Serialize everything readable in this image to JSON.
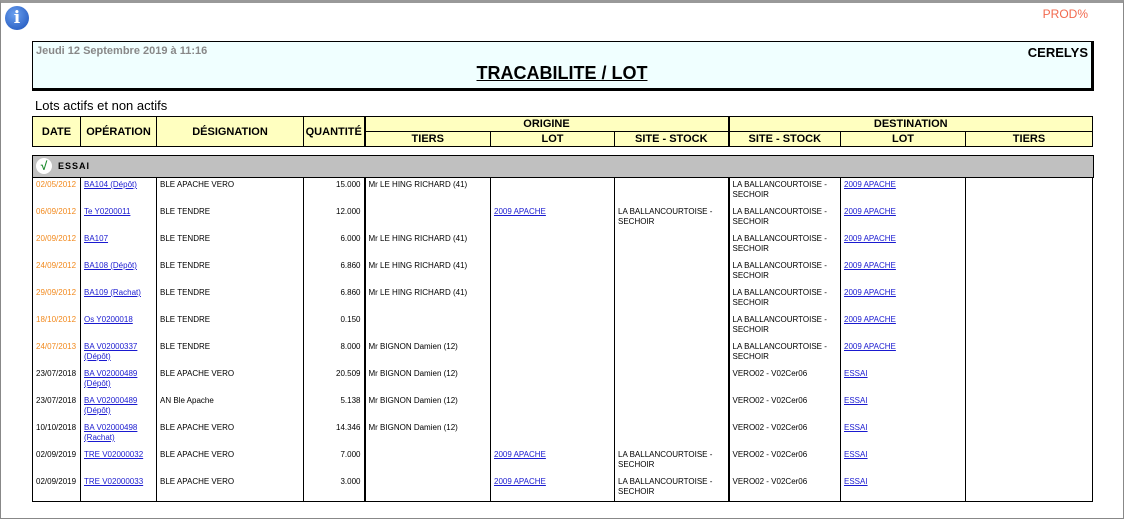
{
  "env": "PROD%",
  "header": {
    "datetime": "Jeudi 12 Septembre 2019 à 11:16",
    "company": "CERELYS",
    "title": "TRACABILITE / LOT"
  },
  "subtitle": "Lots actifs et non actifs",
  "columns": {
    "date": "DATE",
    "operation": "OPÉRATION",
    "designation": "DÉSIGNATION",
    "quantite": "QUANTITÉ",
    "origine": "ORIGINE",
    "destination": "DESTINATION",
    "tiers": "TIERS",
    "lot": "LOT",
    "site_stock": "SITE - STOCK"
  },
  "group": {
    "name": "ESSAI",
    "icon": "check-icon"
  },
  "colors": {
    "old_date": "#f28a1e",
    "link": "#1a1ad0",
    "header_bg": "#ffffc0"
  },
  "rows": [
    {
      "date": "02/05/2012",
      "old": true,
      "op": "BA104 (Dépôt)",
      "des": "BLE APACHE VERO",
      "qty": "15.000",
      "o_tiers": "Mr LE HING RICHARD (41)",
      "o_lot": "",
      "o_site": "",
      "d_site": "LA BALLANCOURTOISE - SECHOIR",
      "d_lot": "2009 APACHE",
      "d_tiers": ""
    },
    {
      "date": "06/09/2012",
      "old": true,
      "op": "Te  Y0200011",
      "des": "BLE TENDRE",
      "qty": "12.000",
      "o_tiers": "",
      "o_lot": "2009 APACHE",
      "o_site": "LA BALLANCOURTOISE - SECHOIR",
      "d_site": "LA BALLANCOURTOISE - SECHOIR",
      "d_lot": "2009 APACHE",
      "d_tiers": ""
    },
    {
      "date": "20/09/2012",
      "old": true,
      "op": "BA107",
      "des": "BLE TENDRE",
      "qty": "6.000",
      "o_tiers": "Mr LE HING RICHARD (41)",
      "o_lot": "",
      "o_site": "",
      "d_site": "LA BALLANCOURTOISE - SECHOIR",
      "d_lot": "2009 APACHE",
      "d_tiers": ""
    },
    {
      "date": "24/09/2012",
      "old": true,
      "op": "BA108 (Dépôt)",
      "des": "BLE TENDRE",
      "qty": "6.860",
      "o_tiers": "Mr LE HING RICHARD (41)",
      "o_lot": "",
      "o_site": "",
      "d_site": "LA BALLANCOURTOISE - SECHOIR",
      "d_lot": "2009 APACHE",
      "d_tiers": ""
    },
    {
      "date": "29/09/2012",
      "old": true,
      "op": "BA109 (Rachat)",
      "des": "BLE TENDRE",
      "qty": "6.860",
      "o_tiers": "Mr LE HING RICHARD (41)",
      "o_lot": "",
      "o_site": "",
      "d_site": "LA BALLANCOURTOISE - SECHOIR",
      "d_lot": "2009 APACHE",
      "d_tiers": ""
    },
    {
      "date": "18/10/2012",
      "old": true,
      "op": "Os  Y0200018",
      "des": "BLE TENDRE",
      "qty": "0.150",
      "o_tiers": "",
      "o_lot": "",
      "o_site": "",
      "d_site": "LA BALLANCOURTOISE - SECHOIR",
      "d_lot": "2009 APACHE",
      "d_tiers": ""
    },
    {
      "date": "24/07/2013",
      "old": true,
      "op": "BA  V02000337 (Dépôt)",
      "des": "BLE TENDRE",
      "qty": "8.000",
      "o_tiers": "Mr BIGNON Damien (12)",
      "o_lot": "",
      "o_site": "",
      "d_site": "LA BALLANCOURTOISE - SECHOIR",
      "d_lot": "2009 APACHE",
      "d_tiers": ""
    },
    {
      "date": "23/07/2018",
      "old": false,
      "op": "BA  V02000489 (Dépôt)",
      "des": "BLE APACHE VERO",
      "qty": "20.509",
      "o_tiers": "Mr BIGNON Damien (12)",
      "o_lot": "",
      "o_site": "",
      "d_site": "VERO02 - V02Cer06",
      "d_lot": "ESSAI",
      "d_tiers": ""
    },
    {
      "date": "23/07/2018",
      "old": false,
      "op": "BA  V02000489 (Dépôt)",
      "des": "AN Ble Apache",
      "qty": "5.138",
      "o_tiers": "Mr BIGNON Damien (12)",
      "o_lot": "",
      "o_site": "",
      "d_site": "VERO02 - V02Cer06",
      "d_lot": "ESSAI",
      "d_tiers": ""
    },
    {
      "date": "10/10/2018",
      "old": false,
      "op": "BA  V02000498 (Rachat)",
      "des": "BLE APACHE VERO",
      "qty": "14.346",
      "o_tiers": "Mr BIGNON Damien (12)",
      "o_lot": "",
      "o_site": "",
      "d_site": "VERO02 - V02Cer06",
      "d_lot": "ESSAI",
      "d_tiers": ""
    },
    {
      "date": "02/09/2019",
      "old": false,
      "op": "TRE  V02000032",
      "des": "BLE APACHE VERO",
      "qty": "7.000",
      "o_tiers": "",
      "o_lot": "2009 APACHE",
      "o_site": "LA BALLANCOURTOISE - SECHOIR",
      "d_site": "VERO02 - V02Cer06",
      "d_lot": "ESSAI",
      "d_tiers": ""
    },
    {
      "date": "02/09/2019",
      "old": false,
      "op": "TRE  V02000033",
      "des": "BLE APACHE VERO",
      "qty": "3.000",
      "o_tiers": "",
      "o_lot": "2009 APACHE",
      "o_site": "LA BALLANCOURTOISE - SECHOIR",
      "d_site": "VERO02 - V02Cer06",
      "d_lot": "ESSAI",
      "d_tiers": ""
    }
  ]
}
